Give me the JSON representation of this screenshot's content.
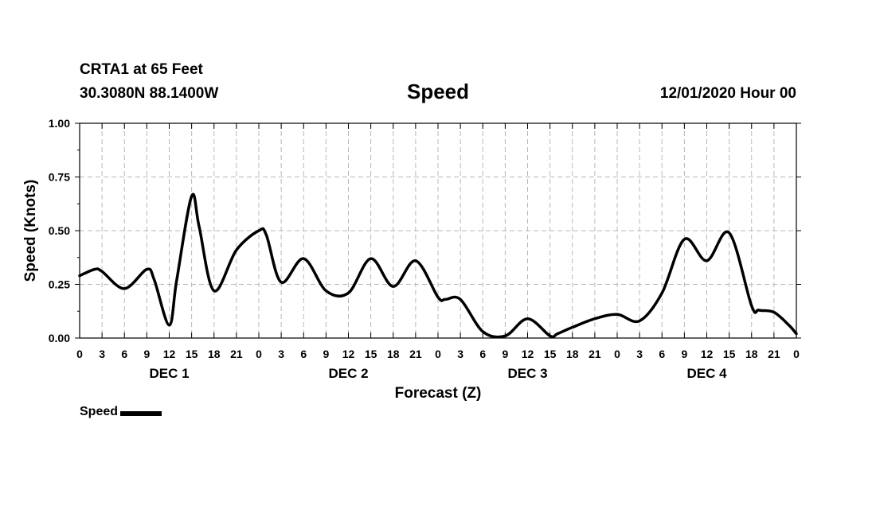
{
  "header": {
    "station": "CRTA1 at 65 Feet",
    "coords": "30.3080N 88.1400W",
    "title": "Speed",
    "datetime": "12/01/2020 Hour 00"
  },
  "chart_data": {
    "type": "line",
    "title": "Speed",
    "xlabel": "Forecast (Z)",
    "ylabel": "Speed (Knots)",
    "xlim": [
      0,
      96
    ],
    "ylim": [
      0,
      1
    ],
    "y_ticks": [
      "0.00",
      "0.25",
      "0.50",
      "0.75",
      "1.00"
    ],
    "x_tick_labels": [
      "0",
      "3",
      "6",
      "9",
      "12",
      "15",
      "18",
      "21",
      "0",
      "3",
      "6",
      "9",
      "12",
      "15",
      "18",
      "21",
      "0",
      "3",
      "6",
      "9",
      "12",
      "15",
      "18",
      "21",
      "0",
      "3",
      "6",
      "9",
      "12",
      "15",
      "18",
      "21",
      "0"
    ],
    "day_labels": [
      "DEC 1",
      "DEC 2",
      "DEC 3",
      "DEC 4"
    ],
    "grid": true,
    "legend_position": "bottom-left",
    "series": [
      {
        "name": "Speed",
        "color": "#000000",
        "x": [
          0,
          2,
          3,
          6,
          9,
          10,
          12,
          13,
          15,
          16,
          18,
          21,
          24,
          25,
          27,
          30,
          33,
          36,
          39,
          42,
          45,
          48,
          49,
          51,
          54,
          57,
          60,
          63,
          64,
          66,
          69,
          72,
          75,
          78,
          81,
          84,
          87,
          90,
          91,
          93,
          95,
          96
        ],
        "values": [
          0.29,
          0.32,
          0.31,
          0.23,
          0.32,
          0.27,
          0.06,
          0.27,
          0.66,
          0.52,
          0.22,
          0.41,
          0.5,
          0.48,
          0.26,
          0.37,
          0.22,
          0.21,
          0.37,
          0.24,
          0.36,
          0.19,
          0.18,
          0.18,
          0.03,
          0.01,
          0.09,
          0.01,
          0.02,
          0.05,
          0.09,
          0.11,
          0.08,
          0.21,
          0.46,
          0.36,
          0.49,
          0.15,
          0.13,
          0.12,
          0.06,
          0.02
        ]
      }
    ]
  }
}
